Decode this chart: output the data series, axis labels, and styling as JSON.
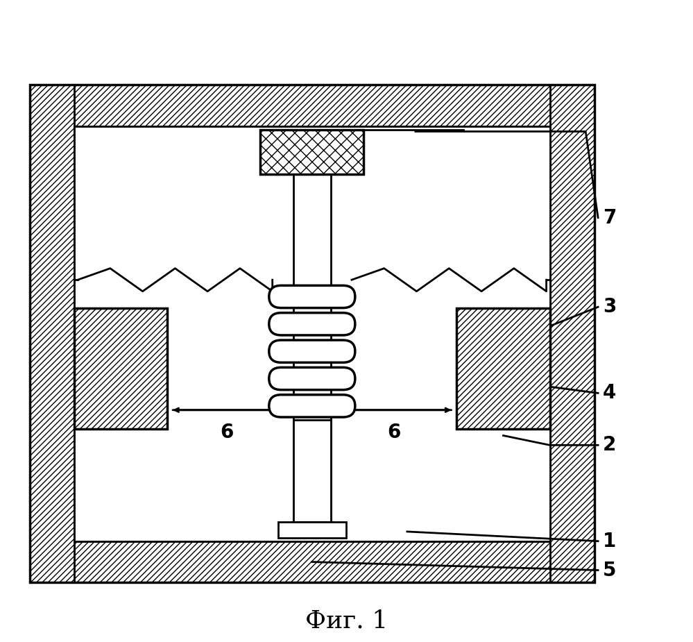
{
  "fig_width": 9.99,
  "fig_height": 9.25,
  "bg_color": "#ffffff",
  "title": "Фиг. 1",
  "title_fontsize": 26,
  "line_color": "#000000"
}
